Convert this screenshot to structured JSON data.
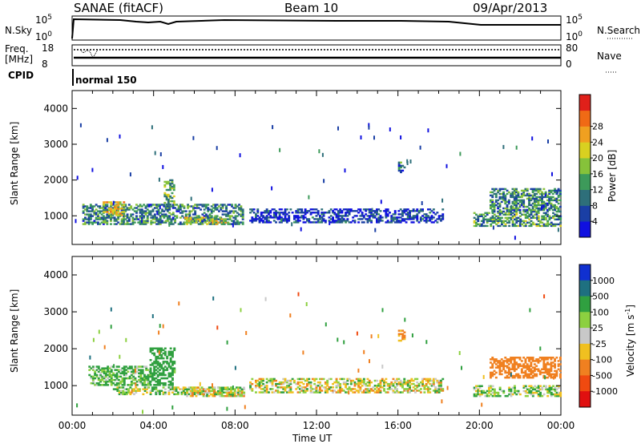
{
  "header": {
    "station": "SANAE (fitACF)",
    "beam": "Beam 10",
    "date": "09/Apr/2013"
  },
  "top_panels": {
    "nsky_label": "N.Sky",
    "nsky_ticks": [
      "10^5",
      "10^0"
    ],
    "nsearch_label": "N.Search",
    "nsearch_ticks": [
      "10^5",
      "10^0"
    ],
    "freq_label": "Freq.",
    "freq_unit": "[MHz]",
    "freq_ticks": [
      "18",
      "8"
    ],
    "nave_label": "Nave",
    "nave_ticks": [
      "80",
      "0"
    ],
    "cpid_label": "CPID",
    "cpid_value": "normal 150"
  },
  "chart_data": [
    {
      "type": "heatmap",
      "name": "power-panel",
      "ylabel": "Slant Range [km]",
      "xlabel": "",
      "xlim": [
        0,
        24
      ],
      "ylim": [
        200,
        4500
      ],
      "yticks": [
        "1000",
        "2000",
        "3000",
        "4000"
      ],
      "colorbar_label": "Power [dB]",
      "colorbar_ticks": [
        "4",
        "8",
        "12",
        "16",
        "20",
        "24",
        "28"
      ],
      "colorbar_colors": [
        "#1010e0",
        "#1a3fa5",
        "#2e6f7a",
        "#3d9a5a",
        "#86c23a",
        "#d9d020",
        "#f0a020",
        "#f06a15",
        "#e0201a"
      ],
      "features": [
        {
          "x_start": 0.5,
          "x_end": 8.4,
          "range_lo": 750,
          "range_hi": 1300,
          "value": 10
        },
        {
          "x_start": 1.5,
          "x_end": 2.5,
          "range_lo": 1000,
          "range_hi": 1400,
          "value": 20
        },
        {
          "x_start": 4.5,
          "x_end": 5.0,
          "range_lo": 1300,
          "range_hi": 2000,
          "value": 14
        },
        {
          "x_start": 5.5,
          "x_end": 7.5,
          "range_lo": 750,
          "range_hi": 950,
          "value": 18
        },
        {
          "x_start": 8.7,
          "x_end": 18.2,
          "range_lo": 800,
          "range_hi": 1200,
          "value": 4
        },
        {
          "x_start": 16.0,
          "x_end": 16.3,
          "range_lo": 2200,
          "range_hi": 2500,
          "value": 8
        },
        {
          "x_start": 19.7,
          "x_end": 24.0,
          "range_lo": 700,
          "range_hi": 1100,
          "value": 12
        },
        {
          "x_start": 20.5,
          "x_end": 24.0,
          "range_lo": 1100,
          "range_hi": 1750,
          "value": 10
        }
      ]
    },
    {
      "type": "heatmap",
      "name": "velocity-panel",
      "ylabel": "Slant Range [km]",
      "xlabel": "Time UT",
      "xlim": [
        0,
        24
      ],
      "ylim": [
        200,
        4500
      ],
      "xticks": [
        "00:00",
        "04:00",
        "08:00",
        "12:00",
        "16:00",
        "20:00",
        "00:00"
      ],
      "yticks": [
        "1000",
        "2000",
        "3000",
        "4000"
      ],
      "colorbar_label": "Velocity [m s^-1]",
      "colorbar_ticks": [
        "1000",
        "500",
        "100",
        "25",
        "-25",
        "-100",
        "-500",
        "-1000"
      ],
      "colorbar_colors": [
        "#1030d0",
        "#1e7080",
        "#30a040",
        "#8cd040",
        "#c8c8c8",
        "#f0c020",
        "#f08020",
        "#f04a10",
        "#e01010"
      ],
      "features": [
        {
          "x_start": 0.8,
          "x_end": 3.8,
          "range_lo": 1000,
          "range_hi": 1500,
          "value": 150
        },
        {
          "x_start": 3.8,
          "x_end": 5.0,
          "range_lo": 1000,
          "range_hi": 2000,
          "value": 300
        },
        {
          "x_start": 2.0,
          "x_end": 8.4,
          "range_lo": 750,
          "range_hi": 950,
          "value": 60
        },
        {
          "x_start": 5.5,
          "x_end": 8.4,
          "range_lo": 700,
          "range_hi": 950,
          "value": 0
        },
        {
          "x_start": 8.7,
          "x_end": 18.2,
          "range_lo": 800,
          "range_hi": 1200,
          "value": 0
        },
        {
          "x_start": 16.0,
          "x_end": 16.3,
          "range_lo": 2200,
          "range_hi": 2500,
          "value": -200
        },
        {
          "x_start": 19.7,
          "x_end": 24.0,
          "range_lo": 700,
          "range_hi": 1000,
          "value": 60
        },
        {
          "x_start": 20.5,
          "x_end": 24.0,
          "range_lo": 1200,
          "range_hi": 1750,
          "value": -300
        }
      ]
    }
  ]
}
